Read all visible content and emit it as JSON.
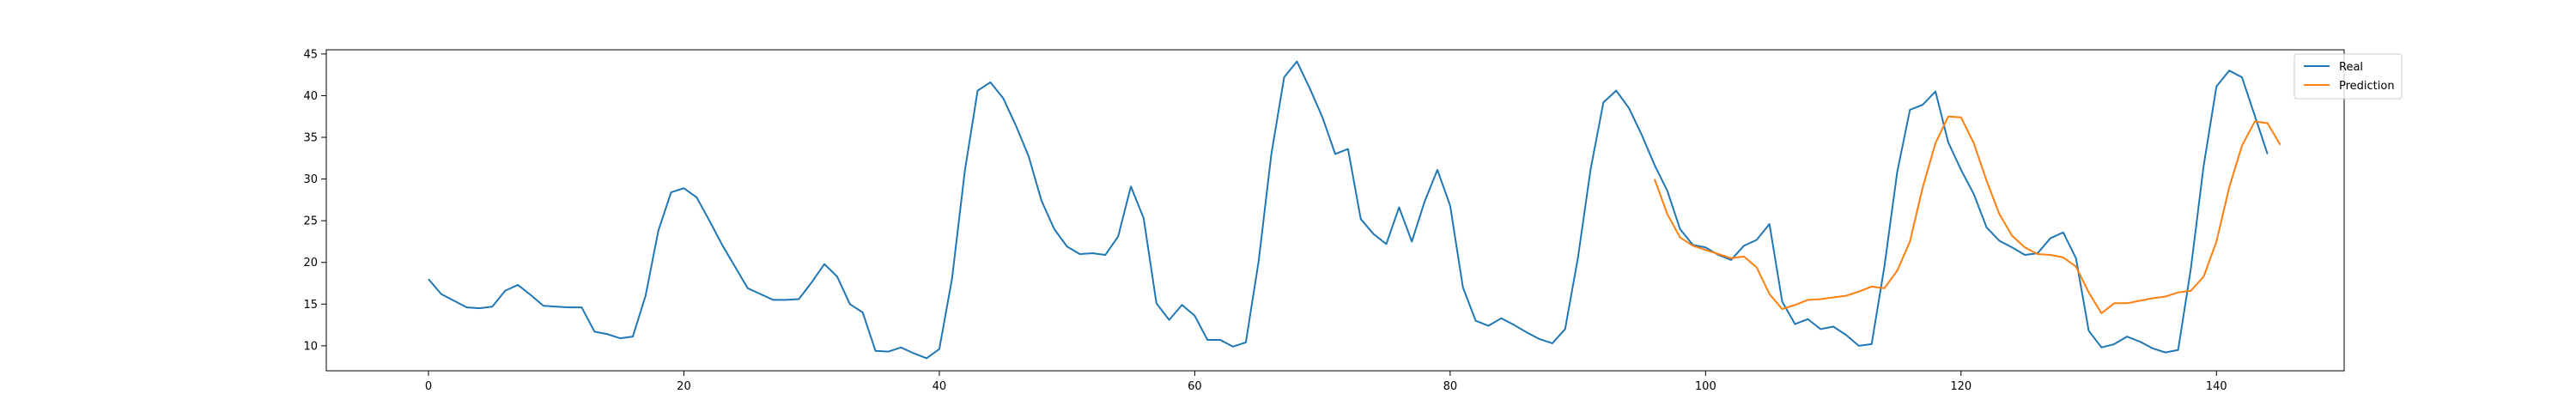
{
  "chart_data": {
    "type": "line",
    "xlim": [
      -8,
      150
    ],
    "ylim": [
      7,
      45.5
    ],
    "x_ticks": [
      0,
      20,
      40,
      60,
      80,
      100,
      120,
      140
    ],
    "y_ticks": [
      10,
      15,
      20,
      25,
      30,
      35,
      40,
      45
    ],
    "grid": false,
    "legend_position": "top-right",
    "series": [
      {
        "name": "Real",
        "color": "#1f77b4",
        "x_start": 0,
        "values": [
          18.0,
          16.2,
          15.4,
          14.6,
          14.5,
          14.7,
          16.6,
          17.3,
          16.1,
          14.8,
          14.7,
          14.6,
          14.6,
          11.7,
          11.4,
          10.9,
          11.1,
          16.0,
          23.8,
          28.4,
          28.9,
          27.8,
          25.0,
          22.1,
          19.5,
          16.9,
          16.2,
          15.5,
          15.5,
          15.6,
          17.6,
          19.8,
          18.3,
          15.0,
          14.0,
          9.4,
          9.3,
          9.8,
          9.1,
          8.5,
          9.6,
          18.1,
          31.0,
          40.6,
          41.6,
          39.7,
          36.4,
          32.7,
          27.4,
          24.0,
          21.9,
          21.0,
          21.1,
          20.9,
          23.1,
          29.1,
          25.3,
          15.1,
          13.1,
          14.9,
          13.6,
          10.7,
          10.7,
          9.9,
          10.4,
          20.1,
          33.0,
          42.2,
          44.1,
          40.9,
          37.4,
          33.0,
          33.6,
          25.2,
          23.4,
          22.2,
          26.6,
          22.5,
          27.3,
          31.1,
          26.8,
          17.0,
          13.0,
          12.4,
          13.3,
          12.5,
          11.6,
          10.8,
          10.3,
          12.0,
          20.5,
          31.2,
          39.2,
          40.6,
          38.5,
          35.3,
          31.7,
          28.6,
          24.0,
          22.1,
          21.8,
          20.9,
          20.3,
          22.0,
          22.7,
          24.6,
          15.3,
          12.6,
          13.2,
          12.0,
          12.3,
          11.3,
          10.0,
          10.2,
          19.5,
          30.8,
          38.3,
          38.9,
          40.5,
          34.4,
          31.1,
          28.2,
          24.2,
          22.6,
          21.8,
          20.9,
          21.1,
          22.9,
          23.6,
          20.5,
          11.8,
          9.8,
          10.2,
          11.1,
          10.5,
          9.7,
          9.2,
          9.5,
          19.3,
          31.6,
          41.1,
          43.0,
          42.2,
          37.6,
          33.0
        ]
      },
      {
        "name": "Prediction",
        "color": "#ff7f0e",
        "x_start": 96,
        "values": [
          30.0,
          25.8,
          23.0,
          22.0,
          21.5,
          21.0,
          20.5,
          20.7,
          19.4,
          16.2,
          14.4,
          14.9,
          15.5,
          15.6,
          15.8,
          16.0,
          16.5,
          17.1,
          16.9,
          19.0,
          22.5,
          29.0,
          34.3,
          37.5,
          37.4,
          34.3,
          29.8,
          25.8,
          23.2,
          21.8,
          21.0,
          20.9,
          20.6,
          19.5,
          16.4,
          13.9,
          15.1,
          15.1,
          15.4,
          15.7,
          15.9,
          16.4,
          16.6,
          18.3,
          22.5,
          29.0,
          34.0,
          36.9,
          36.7,
          34.1
        ]
      }
    ]
  }
}
